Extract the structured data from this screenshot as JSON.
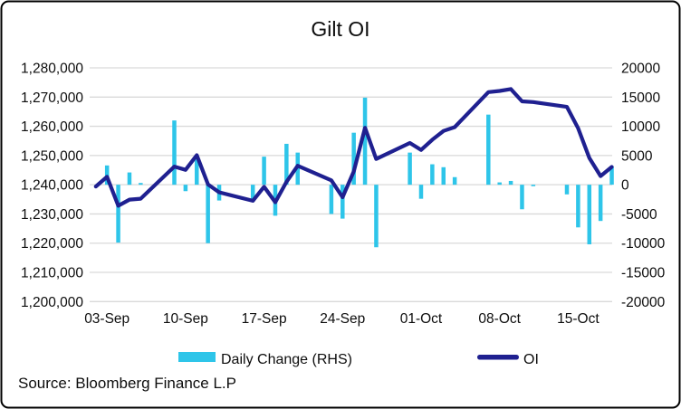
{
  "chart_data": {
    "type": "combo",
    "title": "Gilt OI",
    "source_note": "Source: Bloomberg Finance L.P",
    "legend": [
      {
        "label": "Daily Change (RHS)",
        "type": "bar",
        "color": "#2EC5E9"
      },
      {
        "label": "OI",
        "type": "line",
        "color": "#1F2090"
      }
    ],
    "colors": {
      "bar": "#2EC5E9",
      "line": "#1F2090",
      "grid": "#d9d9d9",
      "border": "#000000"
    },
    "left_axis": {
      "min": 1200000,
      "max": 1280000,
      "step": 10000,
      "labels": [
        "1,280,000",
        "1,270,000",
        "1,260,000",
        "1,250,000",
        "1,240,000",
        "1,230,000",
        "1,220,000",
        "1,210,000",
        "1,200,000"
      ]
    },
    "right_axis": {
      "min": -20000,
      "max": 20000,
      "step": 5000,
      "labels": [
        "20000",
        "15000",
        "10000",
        "5000",
        "0",
        "-5000",
        "-10000",
        "-15000",
        "-20000"
      ]
    },
    "x_ticks": [
      {
        "label": "03-Sep",
        "d": 1
      },
      {
        "label": "10-Sep",
        "d": 8
      },
      {
        "label": "17-Sep",
        "d": 15
      },
      {
        "label": "24-Sep",
        "d": 22
      },
      {
        "label": "01-Oct",
        "d": 29
      },
      {
        "label": "08-Oct",
        "d": 36
      },
      {
        "label": "15-Oct",
        "d": 43
      }
    ],
    "series_note": "d = calendar-day offset from 02-Sep; oi on left axis, change (daily change) on right axis",
    "points": [
      {
        "date": "02-Sep",
        "d": 0,
        "oi": 1239400,
        "change": null
      },
      {
        "date": "03-Sep",
        "d": 1,
        "oi": 1242700,
        "change": 3300
      },
      {
        "date": "04-Sep",
        "d": 2,
        "oi": 1232800,
        "change": -9900
      },
      {
        "date": "05-Sep",
        "d": 3,
        "oi": 1234900,
        "change": 2100
      },
      {
        "date": "06-Sep",
        "d": 4,
        "oi": 1235200,
        "change": 300
      },
      {
        "date": "09-Sep",
        "d": 7,
        "oi": 1246200,
        "change": 11000
      },
      {
        "date": "10-Sep",
        "d": 8,
        "oi": 1245100,
        "change": -1100
      },
      {
        "date": "11-Sep",
        "d": 9,
        "oi": 1250100,
        "change": 5000
      },
      {
        "date": "12-Sep",
        "d": 10,
        "oi": 1240100,
        "change": -10000
      },
      {
        "date": "13-Sep",
        "d": 11,
        "oi": 1237400,
        "change": -2700
      },
      {
        "date": "16-Sep",
        "d": 14,
        "oi": 1234500,
        "change": -2900
      },
      {
        "date": "17-Sep",
        "d": 15,
        "oi": 1239300,
        "change": 4800
      },
      {
        "date": "18-Sep",
        "d": 16,
        "oi": 1234000,
        "change": -5300
      },
      {
        "date": "19-Sep",
        "d": 17,
        "oi": 1241000,
        "change": 7000
      },
      {
        "date": "20-Sep",
        "d": 18,
        "oi": 1246500,
        "change": 5500
      },
      {
        "date": "23-Sep",
        "d": 21,
        "oi": 1241500,
        "change": -5000
      },
      {
        "date": "24-Sep",
        "d": 22,
        "oi": 1235700,
        "change": -5800
      },
      {
        "date": "25-Sep",
        "d": 23,
        "oi": 1244600,
        "change": 8900
      },
      {
        "date": "26-Sep",
        "d": 24,
        "oi": 1259500,
        "change": 14900
      },
      {
        "date": "27-Sep",
        "d": 25,
        "oi": 1248800,
        "change": -10700
      },
      {
        "date": "30-Sep",
        "d": 28,
        "oi": 1254300,
        "change": 5500
      },
      {
        "date": "01-Oct",
        "d": 29,
        "oi": 1251900,
        "change": -2400
      },
      {
        "date": "02-Oct",
        "d": 30,
        "oi": 1255400,
        "change": 3500
      },
      {
        "date": "03-Oct",
        "d": 31,
        "oi": 1258400,
        "change": 3000
      },
      {
        "date": "04-Oct",
        "d": 32,
        "oi": 1259700,
        "change": 1300
      },
      {
        "date": "07-Oct",
        "d": 35,
        "oi": 1271700,
        "change": 12000
      },
      {
        "date": "08-Oct",
        "d": 36,
        "oi": 1272100,
        "change": 400
      },
      {
        "date": "09-Oct",
        "d": 37,
        "oi": 1272750,
        "change": 650
      },
      {
        "date": "10-Oct",
        "d": 38,
        "oi": 1268550,
        "change": -4200
      },
      {
        "date": "11-Oct",
        "d": 39,
        "oi": 1268300,
        "change": -250
      },
      {
        "date": "14-Oct",
        "d": 42,
        "oi": 1266650,
        "change": -1650
      },
      {
        "date": "15-Oct",
        "d": 43,
        "oi": 1259350,
        "change": -7300
      },
      {
        "date": "16-Oct",
        "d": 44,
        "oi": 1249150,
        "change": -10200
      },
      {
        "date": "17-Oct",
        "d": 45,
        "oi": 1242950,
        "change": -6200
      },
      {
        "date": "18-Oct",
        "d": 46,
        "oi": 1246100,
        "change": 3150
      }
    ]
  }
}
